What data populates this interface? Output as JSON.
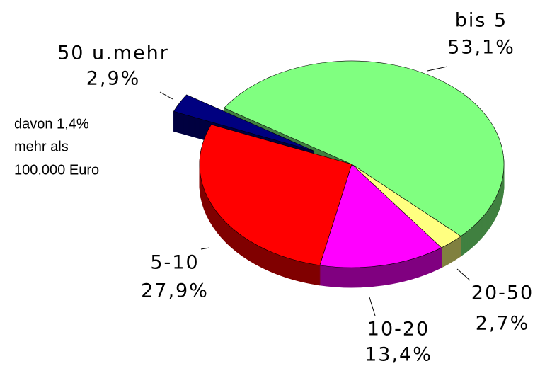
{
  "chart_data": {
    "type": "pie",
    "categories": [
      "bis 5",
      "20-50",
      "10-20",
      "5-10",
      "50 u.mehr"
    ],
    "values": [
      53.1,
      2.7,
      13.4,
      27.9,
      2.9
    ],
    "value_labels": [
      "53,1%",
      "2,7%",
      "13,4%",
      "27,9%",
      "2,9%"
    ],
    "colors": [
      "#80ff80",
      "#ffff80",
      "#ff00ff",
      "#ff0000",
      "#000080"
    ],
    "exploded": [
      "50 u.mehr"
    ],
    "annotation": [
      "davon 1,4%",
      "mehr als",
      "100.000 Euro"
    ]
  }
}
